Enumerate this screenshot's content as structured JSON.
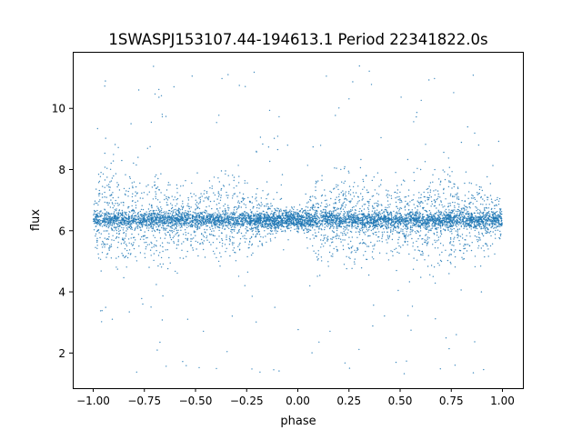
{
  "chart_data": {
    "type": "scatter",
    "title": "1SWASPJ153107.44-194613.1 Period 22341822.0s",
    "xlabel": "phase",
    "ylabel": "flux",
    "xlim": [
      -1.1,
      1.1
    ],
    "ylim": [
      0.85,
      11.85
    ],
    "xticks": [
      -1.0,
      -0.75,
      -0.5,
      -0.25,
      0.0,
      0.25,
      0.5,
      0.75,
      1.0
    ],
    "xtick_labels": [
      "−1.00",
      "−0.75",
      "−0.50",
      "−0.25",
      "0.00",
      "0.25",
      "0.50",
      "0.75",
      "1.00"
    ],
    "yticks": [
      2,
      4,
      6,
      8,
      10
    ],
    "ytick_labels": [
      "2",
      "4",
      "6",
      "8",
      "10"
    ],
    "grid": false,
    "legend": "none",
    "point_color": "#1f77b4",
    "baseline_flux": 6.35,
    "x_range": [
      -1.0,
      1.0
    ],
    "flux_range": [
      1.3,
      11.4
    ],
    "envelope": {
      "phase": [
        -1.0,
        -0.95,
        -0.9,
        -0.85,
        -0.8,
        -0.75,
        -0.7,
        -0.65,
        -0.6,
        -0.55,
        -0.5,
        -0.45,
        -0.4,
        -0.35,
        -0.3,
        -0.25,
        -0.2,
        -0.15,
        -0.1,
        -0.05,
        0.0,
        0.05,
        0.1,
        0.15,
        0.2,
        0.25,
        0.3,
        0.35,
        0.4,
        0.45,
        0.5,
        0.55,
        0.6,
        0.65,
        0.7,
        0.75,
        0.8,
        0.85,
        0.9,
        0.95,
        1.0
      ],
      "upper": [
        7.2,
        9.5,
        9.2,
        8.9,
        9.0,
        8.6,
        8.9,
        8.4,
        8.1,
        7.8,
        7.9,
        8.2,
        8.8,
        8.3,
        8.9,
        8.1,
        7.7,
        7.4,
        7.1,
        6.9,
        6.9,
        7.3,
        8.4,
        8.1,
        8.4,
        8.6,
        8.7,
        8.7,
        8.3,
        8.0,
        8.2,
        8.0,
        8.8,
        8.5,
        8.9,
        8.7,
        8.1,
        8.3,
        8.2,
        7.8,
        7.2
      ],
      "lower": [
        5.6,
        3.9,
        4.1,
        4.0,
        4.2,
        4.4,
        3.8,
        4.0,
        4.4,
        4.5,
        4.6,
        4.6,
        3.9,
        4.1,
        4.0,
        4.6,
        5.0,
        5.3,
        5.6,
        5.8,
        5.8,
        5.4,
        4.0,
        4.3,
        4.5,
        4.1,
        4.2,
        4.6,
        4.5,
        4.4,
        4.7,
        4.7,
        4.0,
        4.3,
        3.9,
        4.1,
        4.3,
        4.6,
        4.5,
        4.9,
        5.6
      ]
    }
  }
}
